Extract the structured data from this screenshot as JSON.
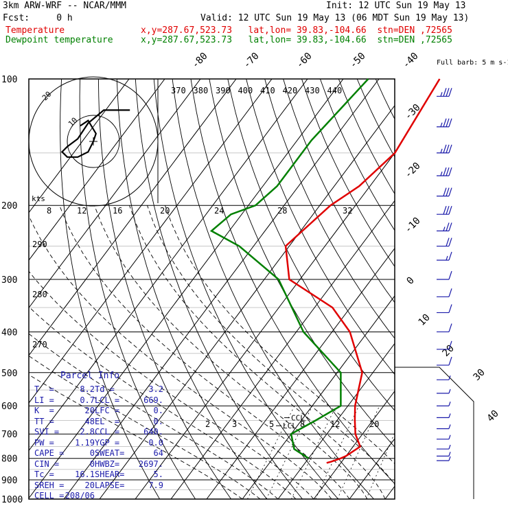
{
  "header": {
    "model": "3km ARW-WRF -- NCAR/MMM",
    "init": "Init: 12 UTC Sun 19 May 13",
    "fcst": "Fcst:     0 h",
    "valid": "Valid: 12 UTC Sun 19 May 13 (06 MDT Sun 19 May 13)",
    "temp_line": {
      "label": "Temperature",
      "info": "x,y=287.67,523.73   lat,lon= 39.83,-104.66  stn=DEN ,72565"
    },
    "dew_line": {
      "label": "Dewpoint temperature",
      "info": "x,y=287.67,523.73   lat,lon= 39.83,-104.66  stn=DEN ,72565"
    }
  },
  "chart_data": {
    "type": "line",
    "title": "Skew-T log-P sounding",
    "pressure_levels": [
      100,
      200,
      300,
      400,
      500,
      600,
      700,
      800,
      900,
      1000
    ],
    "isotherm_labels": [
      "-80",
      "-70",
      "-60",
      "-50",
      "-40",
      "-30",
      "-20",
      "-10",
      "0",
      "10",
      "20",
      "30",
      "40"
    ],
    "theta_e_labels": [
      "370",
      "380",
      "390",
      "400",
      "410",
      "420",
      "430",
      "440"
    ],
    "adiabat_labels": [
      "290",
      "280",
      "270"
    ],
    "mixing_ratio_labels": [
      "2",
      "3",
      "5",
      "8",
      "12",
      "20"
    ],
    "hodograph_speed_labels": [
      "8",
      "12",
      "16",
      "20",
      "24",
      "28",
      "32"
    ],
    "hodograph_units": "kts",
    "hodograph_ring_labels": [
      "10",
      "20"
    ],
    "wind_key": "Full barb: 5 m s-1",
    "ccl_label": "CCL",
    "lcl_label": "LCL",
    "series": [
      {
        "name": "Temperature",
        "color": "#e00000",
        "p": [
          100,
          150,
          180,
          200,
          250,
          300,
          350,
          400,
          500,
          600,
          650,
          700,
          750,
          790,
          800,
          815,
          820
        ],
        "t": [
          -43,
          -40,
          -43,
          -47,
          -51,
          -43,
          -25,
          -15,
          -3,
          2,
          5,
          8,
          12,
          10,
          9,
          7,
          6
        ]
      },
      {
        "name": "Dewpoint temperature",
        "color": "#008000",
        "p": [
          100,
          140,
          180,
          200,
          210,
          230,
          250,
          300,
          400,
          500,
          600,
          650,
          700,
          760,
          800
        ],
        "t": [
          -63,
          -66,
          -66,
          -68,
          -73,
          -75,
          -64,
          -46,
          -28,
          -9,
          -2,
          -6,
          -10,
          -6,
          0
        ]
      }
    ],
    "hodograph": [
      [
        14,
        -12
      ],
      [
        10,
        -12
      ],
      [
        4,
        -12
      ],
      [
        -2,
        -7
      ],
      [
        -6,
        -1
      ],
      [
        -10,
        2
      ],
      [
        -12,
        4
      ],
      [
        -10,
        6
      ],
      [
        -6,
        6
      ],
      [
        -2,
        4
      ],
      [
        0,
        0
      ],
      [
        1,
        -3
      ],
      [
        -2,
        -8
      ],
      [
        -5,
        -6
      ]
    ],
    "wind_barbs": [
      {
        "p": 110,
        "speed": 35
      },
      {
        "p": 130,
        "speed": 35
      },
      {
        "p": 150,
        "speed": 35
      },
      {
        "p": 170,
        "speed": 35
      },
      {
        "p": 190,
        "speed": 30
      },
      {
        "p": 210,
        "speed": 30
      },
      {
        "p": 230,
        "speed": 25
      },
      {
        "p": 250,
        "speed": 20
      },
      {
        "p": 270,
        "speed": 15
      },
      {
        "p": 300,
        "speed": 10
      },
      {
        "p": 330,
        "speed": 10
      },
      {
        "p": 360,
        "speed": 10
      },
      {
        "p": 400,
        "speed": 10
      },
      {
        "p": 440,
        "speed": 10
      },
      {
        "p": 480,
        "speed": 10
      },
      {
        "p": 520,
        "speed": 5
      },
      {
        "p": 560,
        "speed": 5
      },
      {
        "p": 600,
        "speed": 5
      },
      {
        "p": 640,
        "speed": 5
      },
      {
        "p": 680,
        "speed": 5
      },
      {
        "p": 720,
        "speed": 5
      },
      {
        "p": 760,
        "speed": 5
      },
      {
        "p": 790,
        "speed": 5
      },
      {
        "p": 810,
        "speed": 5
      }
    ]
  },
  "parcel_info": {
    "title": "Parcel Info",
    "rows": [
      [
        "T  =",
        "8.2",
        "Td =",
        "3.2"
      ],
      [
        "LI =",
        "0.7",
        "LCL =",
        "669."
      ],
      [
        "K  =",
        "20",
        "LFC =",
        "0."
      ],
      [
        "TT =",
        "48",
        "EL  =",
        "0."
      ],
      [
        "SVI =",
        "2.8",
        "CCL =",
        "640."
      ],
      [
        "PW =",
        "1.19",
        "YGP =",
        "0.0"
      ],
      [
        "CAPE =",
        "0",
        "SWEAT=",
        "64"
      ],
      [
        "CIN =",
        "0",
        "HWBZ=",
        "2697."
      ],
      [
        "Tc =",
        "16.1",
        "SHEAR=",
        "5."
      ],
      [
        "SREH =",
        "20",
        "LAPSE=",
        "7.9"
      ],
      [
        "CELL =",
        "208/06",
        "",
        ""
      ]
    ]
  },
  "colors": {
    "temperature": "#e00000",
    "dewpoint": "#008000",
    "parcel": "#1a1aaa",
    "wind": "#1a1aaa"
  }
}
